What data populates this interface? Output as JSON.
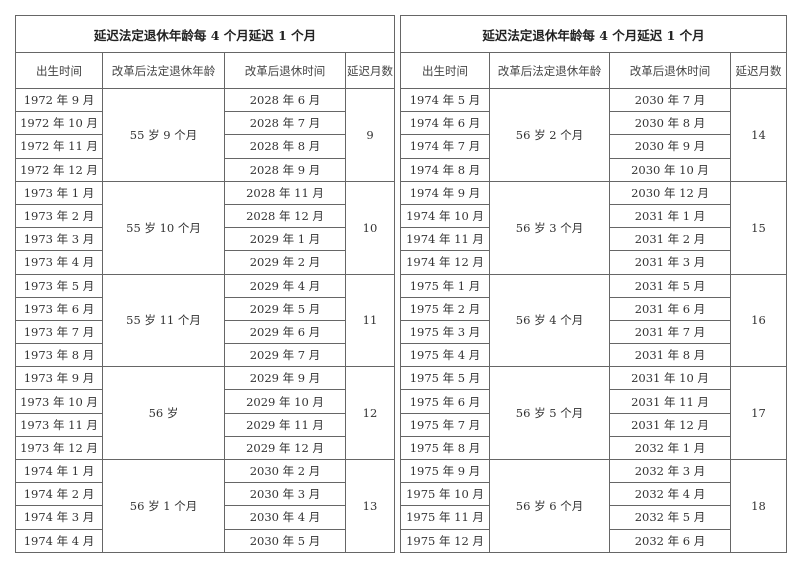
{
  "left": {
    "title": "延迟法定退休年龄每 4 个月延迟 1 个月",
    "headers": [
      "出生时间",
      "改革后法定退休年龄",
      "改革后退休时间",
      "延迟月数"
    ],
    "groups": [
      {
        "births": [
          "1972 年 9 月",
          "1972 年 10 月",
          "1972 年 11 月",
          "1972 年 12 月"
        ],
        "age": "55 岁 9 个月",
        "retire": [
          "2028 年 6 月",
          "2028 年 7 月",
          "2028 年 8 月",
          "2028 年 9 月"
        ],
        "delay": "9"
      },
      {
        "births": [
          "1973 年 1 月",
          "1973 年 2 月",
          "1973 年 3 月",
          "1973 年 4 月"
        ],
        "age": "55 岁 10 个月",
        "retire": [
          "2028 年 11 月",
          "2028 年 12 月",
          "2029 年 1 月",
          "2029 年 2 月"
        ],
        "delay": "10"
      },
      {
        "births": [
          "1973 年 5 月",
          "1973 年 6 月",
          "1973 年 7 月",
          "1973 年 8 月"
        ],
        "age": "55 岁 11 个月",
        "retire": [
          "2029 年 4 月",
          "2029 年 5 月",
          "2029 年 6 月",
          "2029 年 7 月"
        ],
        "delay": "11"
      },
      {
        "births": [
          "1973 年 9 月",
          "1973 年 10 月",
          "1973 年 11 月",
          "1973 年 12 月"
        ],
        "age": "56 岁",
        "retire": [
          "2029 年 9 月",
          "2029 年 10 月",
          "2029 年 11 月",
          "2029 年 12 月"
        ],
        "delay": "12"
      },
      {
        "births": [
          "1974 年 1 月",
          "1974 年 2 月",
          "1974 年 3 月",
          "1974 年 4 月"
        ],
        "age": "56 岁 1 个月",
        "retire": [
          "2030 年 2 月",
          "2030 年 3 月",
          "2030 年 4 月",
          "2030 年 5 月"
        ],
        "delay": "13"
      }
    ]
  },
  "right": {
    "title": "延迟法定退休年龄每 4 个月延迟 1 个月",
    "headers": [
      "出生时间",
      "改革后法定退休年龄",
      "改革后退休时间",
      "延迟月数"
    ],
    "groups": [
      {
        "births": [
          "1974 年 5 月",
          "1974 年 6 月",
          "1974 年 7 月",
          "1974 年 8 月"
        ],
        "age": "56 岁 2 个月",
        "retire": [
          "2030 年 7 月",
          "2030 年 8 月",
          "2030 年 9 月",
          "2030 年 10 月"
        ],
        "delay": "14"
      },
      {
        "births": [
          "1974 年 9 月",
          "1974 年 10 月",
          "1974 年 11 月",
          "1974 年 12 月"
        ],
        "age": "56 岁 3 个月",
        "retire": [
          "2030 年 12 月",
          "2031 年 1 月",
          "2031 年 2 月",
          "2031 年 3 月"
        ],
        "delay": "15"
      },
      {
        "births": [
          "1975 年 1 月",
          "1975 年 2 月",
          "1975 年 3 月",
          "1975 年 4 月"
        ],
        "age": "56 岁 4 个月",
        "retire": [
          "2031 年 5 月",
          "2031 年 6 月",
          "2031 年 7 月",
          "2031 年 8 月"
        ],
        "delay": "16"
      },
      {
        "births": [
          "1975 年 5 月",
          "1975 年 6 月",
          "1975 年 7 月",
          "1975 年 8 月"
        ],
        "age": "56 岁 5 个月",
        "retire": [
          "2031 年 10 月",
          "2031 年 11 月",
          "2031 年 12 月",
          "2032 年 1 月"
        ],
        "delay": "17"
      },
      {
        "births": [
          "1975 年 9 月",
          "1975 年 10 月",
          "1975 年 11 月",
          "1975 年 12 月"
        ],
        "age": "56 岁 6 个月",
        "retire": [
          "2032 年 3 月",
          "2032 年 4 月",
          "2032 年 5 月",
          "2032 年 6 月"
        ],
        "delay": "18"
      }
    ]
  }
}
